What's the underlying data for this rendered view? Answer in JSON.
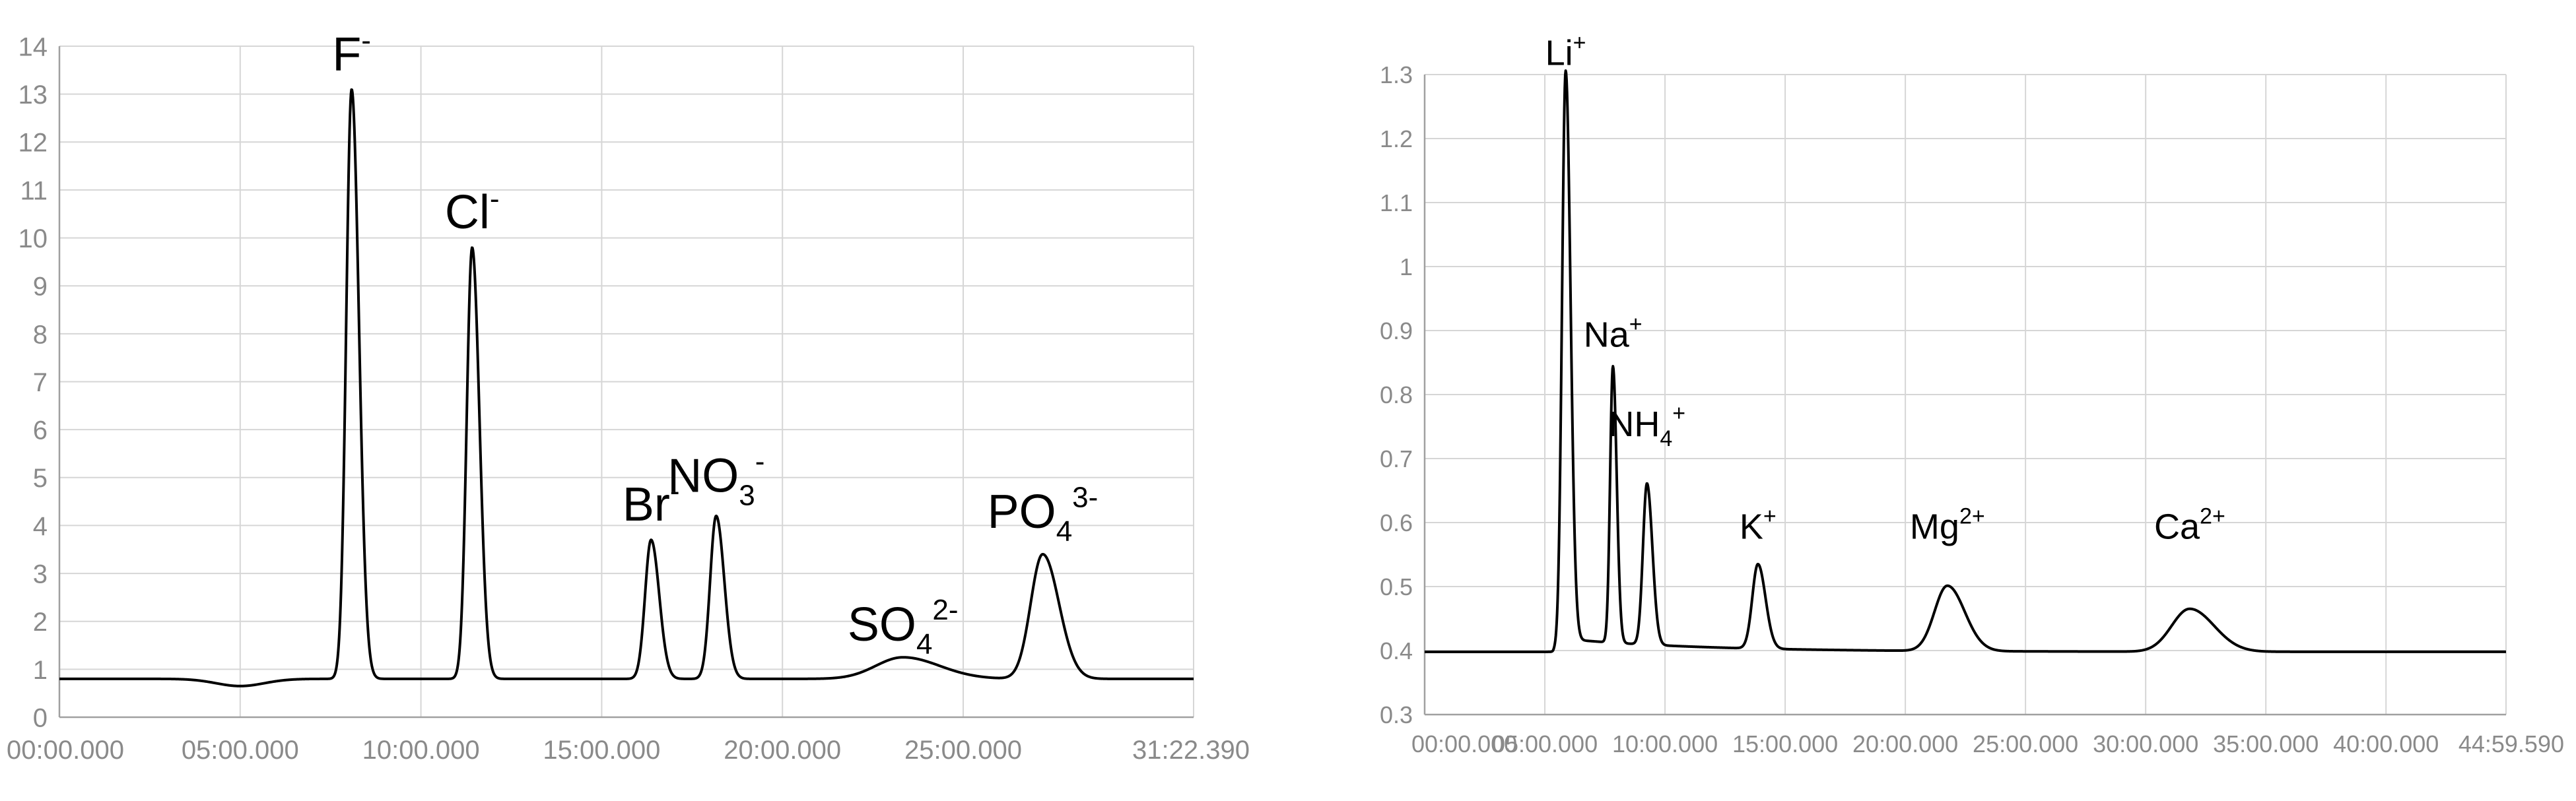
{
  "colors": {
    "background": "#ffffff",
    "grid": "#d6d6d6",
    "axis": "#a0a0a0",
    "tick_text": "#8a8a8a",
    "trace": "#000000",
    "label_text": "#000000"
  },
  "chart_data": [
    {
      "type": "line",
      "title": "",
      "xlabel": "",
      "ylabel": "",
      "x_unit": "seconds",
      "xlim": [
        0,
        1882.39
      ],
      "ylim": [
        0,
        14
      ],
      "yticks": [
        0,
        1,
        2,
        3,
        4,
        5,
        6,
        7,
        8,
        9,
        10,
        11,
        12,
        13,
        14
      ],
      "xticks": [
        {
          "value": 0,
          "label": "00:00.000"
        },
        {
          "value": 300,
          "label": "05:00.000"
        },
        {
          "value": 600,
          "label": "10:00.000"
        },
        {
          "value": 900,
          "label": "15:00.000"
        },
        {
          "value": 1200,
          "label": "20:00.000"
        },
        {
          "value": 1500,
          "label": "25:00.000"
        },
        {
          "value": 1882.39,
          "label": "31:22.390"
        }
      ],
      "grid": true,
      "baseline": 0.8,
      "dips": [
        {
          "center": 300,
          "depth": 0.15,
          "width": 40
        }
      ],
      "peaks": [
        {
          "name": "F",
          "sup": "-",
          "sub": "",
          "time": 485,
          "height": 13.1,
          "width": 9,
          "label_y": 13.5
        },
        {
          "name": "Cl",
          "sup": "-",
          "sub": "",
          "time": 685,
          "height": 9.8,
          "width": 9,
          "label_y": 10.2
        },
        {
          "name": "Br",
          "sup": "-",
          "sub": "",
          "time": 982,
          "height": 3.7,
          "width": 10,
          "label_y": 4.1
        },
        {
          "name": "NO",
          "sup": "-",
          "sub": "3",
          "time": 1090,
          "height": 4.2,
          "width": 10,
          "label_y": 4.7
        },
        {
          "name": "SO",
          "sup": "2-",
          "sub": "4",
          "time": 1400,
          "height": 1.25,
          "width": 45,
          "label_y": 1.6
        },
        {
          "name": "PO",
          "sup": "3-",
          "sub": "4",
          "time": 1632,
          "height": 3.4,
          "width": 20,
          "label_y": 3.95
        }
      ]
    },
    {
      "type": "line",
      "title": "",
      "xlabel": "",
      "ylabel": "",
      "x_unit": "seconds",
      "xlim": [
        0,
        2699.59
      ],
      "ylim": [
        0.3,
        1.3
      ],
      "yticks": [
        {
          "value": 0.3,
          "label": "0.3"
        },
        {
          "value": 0.4,
          "label": "0.4"
        },
        {
          "value": 0.5,
          "label": "0.5"
        },
        {
          "value": 0.6,
          "label": "0.6"
        },
        {
          "value": 0.7,
          "label": "0.7"
        },
        {
          "value": 0.8,
          "label": "0.8"
        },
        {
          "value": 0.9,
          "label": "0.9"
        },
        {
          "value": 1.0,
          "label": "1"
        },
        {
          "value": 1.1,
          "label": "1.1"
        },
        {
          "value": 1.2,
          "label": "1.2"
        },
        {
          "value": 1.3,
          "label": "1.3"
        }
      ],
      "xticks": [
        {
          "value": 0,
          "label": "00:00.000"
        },
        {
          "value": 300,
          "label": "05:00.000"
        },
        {
          "value": 600,
          "label": "10:00.000"
        },
        {
          "value": 900,
          "label": "15:00.000"
        },
        {
          "value": 1200,
          "label": "20:00.000"
        },
        {
          "value": 1500,
          "label": "25:00.000"
        },
        {
          "value": 1800,
          "label": "30:00.000"
        },
        {
          "value": 2100,
          "label": "35:00.000"
        },
        {
          "value": 2400,
          "label": "40:00.000"
        },
        {
          "value": 2699.59,
          "label": "44:59.590"
        }
      ],
      "grid": true,
      "baseline": 0.398,
      "tails": [
        {
          "start": 320,
          "amplitude": 0.022,
          "decay": 350
        }
      ],
      "peaks": [
        {
          "name": "Li",
          "sup": "+",
          "sub": "",
          "time": 352,
          "height": 1.29,
          "width": 9,
          "label_y": 1.315
        },
        {
          "name": "Na",
          "sup": "+",
          "sub": "",
          "time": 470,
          "height": 0.83,
          "width": 7,
          "label_y": 0.875
        },
        {
          "name": "NH",
          "sup": "+",
          "sub": "4",
          "time": 555,
          "height": 0.65,
          "width": 10,
          "label_y": 0.735
        },
        {
          "name": "K",
          "sup": "+",
          "sub": "",
          "time": 832,
          "height": 0.53,
          "width": 14,
          "label_y": 0.575
        },
        {
          "name": "Mg",
          "sup": "2+",
          "sub": "",
          "time": 1305,
          "height": 0.5,
          "width": 32,
          "label_y": 0.575
        },
        {
          "name": "Ca",
          "sup": "2+",
          "sub": "",
          "time": 1910,
          "height": 0.465,
          "width": 45,
          "label_y": 0.575
        }
      ]
    }
  ]
}
